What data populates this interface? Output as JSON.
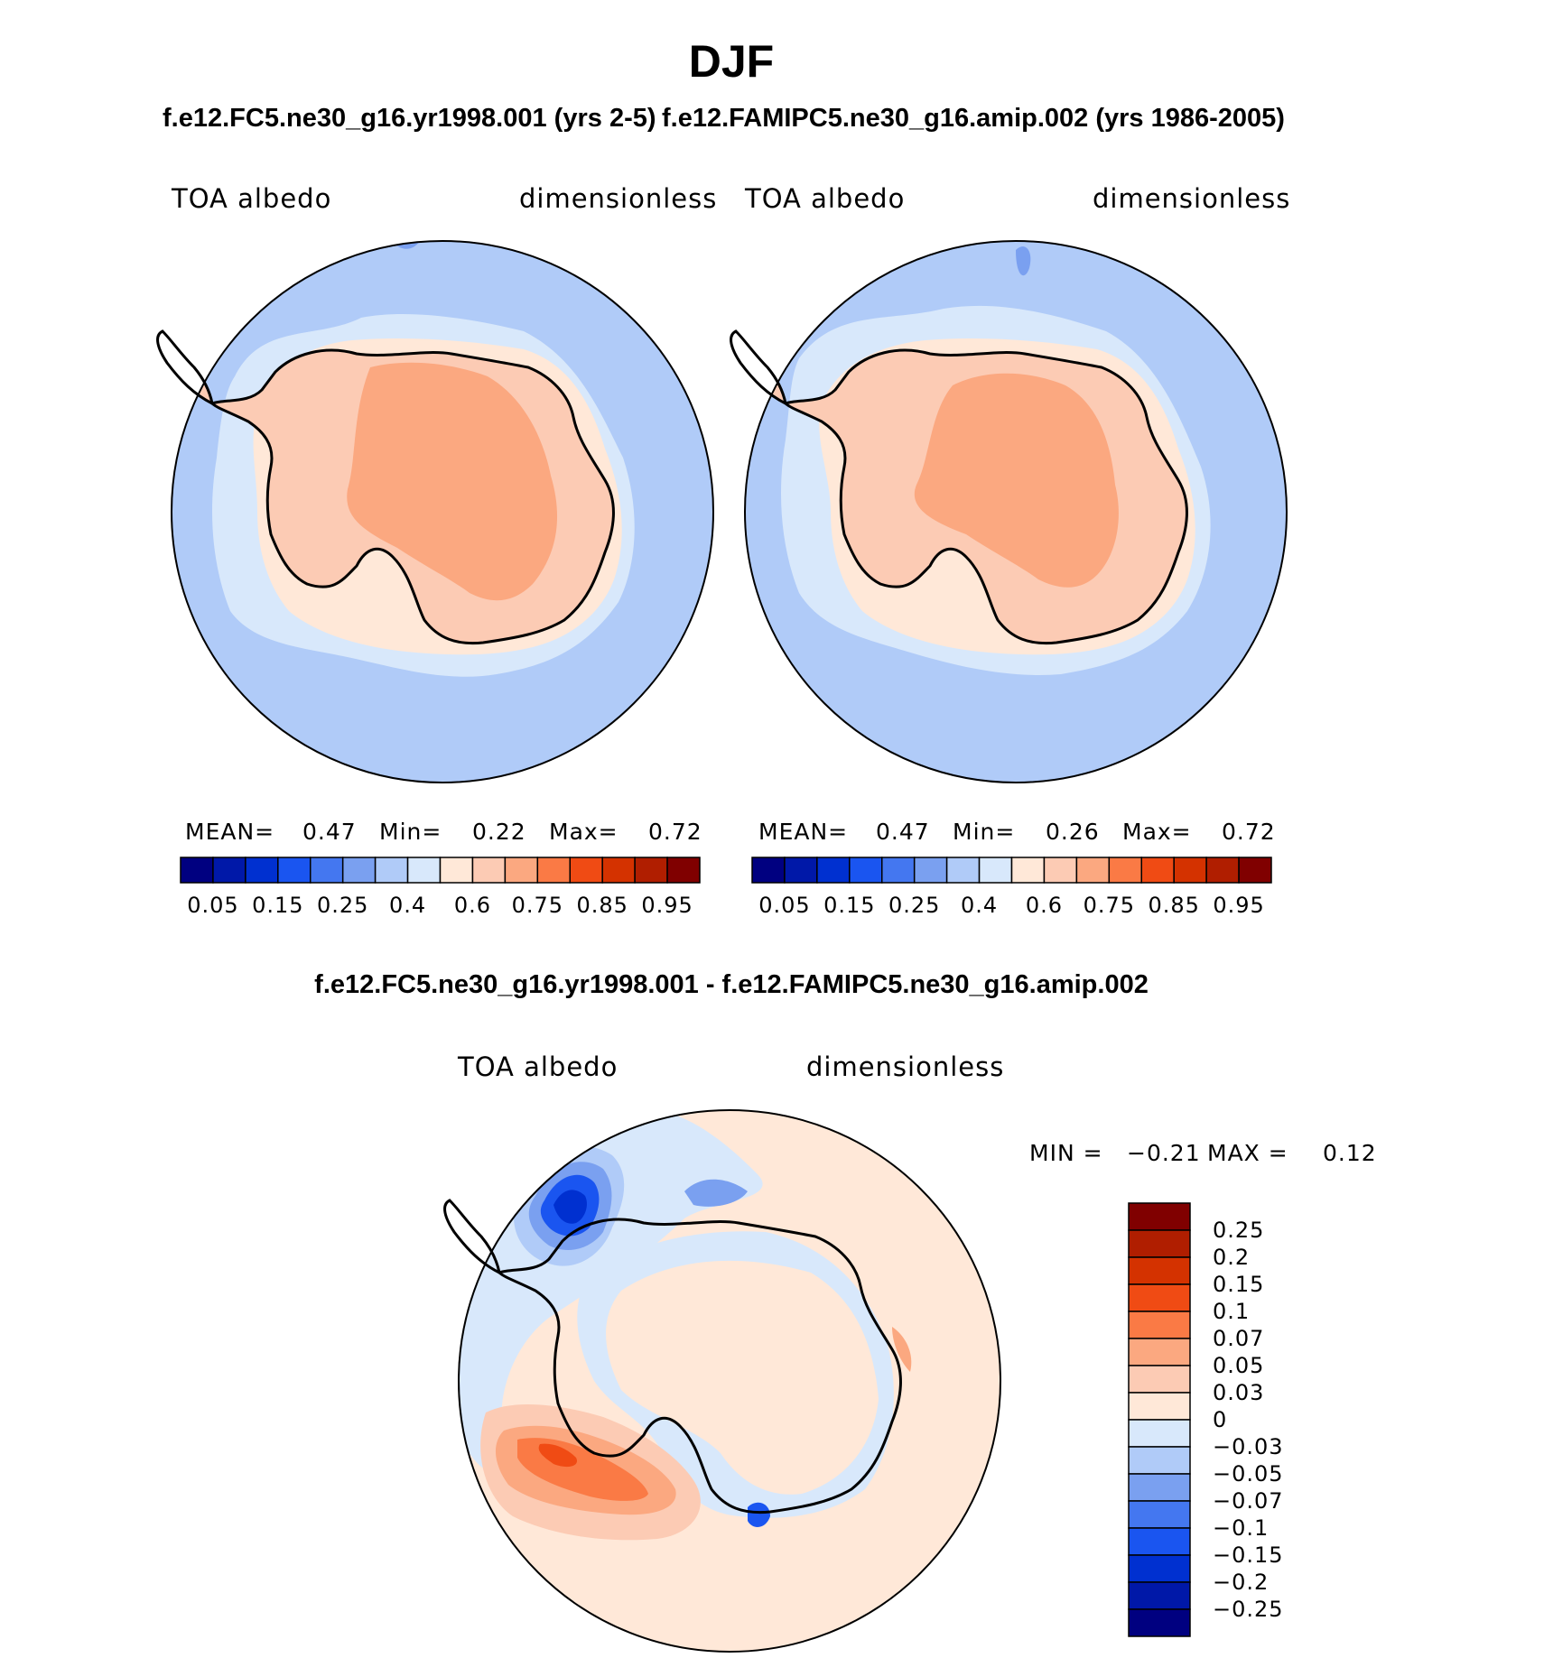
{
  "title": "DJF",
  "panels": [
    {
      "case_title": "f.e12.FC5.ne30_g16.yr1998.001 (yrs 2-5)",
      "variable": "TOA albedo",
      "units": "dimensionless",
      "stats": {
        "mean_label": "MEAN=",
        "mean": "0.47",
        "min_label": "Min=",
        "min": "0.22",
        "max_label": "Max=",
        "max": "0.72"
      }
    },
    {
      "case_title": "f.e12.FAMIPC5.ne30_g16.amip.002 (yrs 1986-2005)",
      "variable": "TOA albedo",
      "units": "dimensionless",
      "stats": {
        "mean_label": "MEAN=",
        "mean": "0.47",
        "min_label": "Min=",
        "min": "0.26",
        "max_label": "Max=",
        "max": "0.72"
      }
    },
    {
      "case_title": "f.e12.FC5.ne30_g16.yr1998.001 - f.e12.FAMIPC5.ne30_g16.amip.002",
      "variable": "TOA albedo",
      "units": "dimensionless",
      "stats": {
        "min_label": "MIN =",
        "min": "−0.21",
        "max_label": "MAX =",
        "max": "0.12"
      }
    }
  ],
  "colorbar_main": {
    "colors": [
      "#000080",
      "#0018a8",
      "#0030d0",
      "#1a55f0",
      "#4477f0",
      "#7aa0f0",
      "#b0cbf8",
      "#d8e8fb",
      "#ffe8d8",
      "#fccbb4",
      "#fba880",
      "#fa7a45",
      "#f04b14",
      "#d43200",
      "#b01e00",
      "#800000"
    ],
    "tick_labels": [
      "0.05",
      "0.15",
      "0.25",
      "0.4",
      "0.6",
      "0.75",
      "0.85",
      "0.95"
    ]
  },
  "colorbar_diff": {
    "colors": [
      "#800000",
      "#b01e00",
      "#d43200",
      "#f04b14",
      "#fa7a45",
      "#fba880",
      "#fccbb4",
      "#ffe8d8",
      "#d8e8fb",
      "#b0cbf8",
      "#7aa0f0",
      "#4477f0",
      "#1a55f0",
      "#0030d0",
      "#0018a8",
      "#000080"
    ],
    "tick_labels": [
      "0.25",
      "0.2",
      "0.15",
      "0.1",
      "0.07",
      "0.05",
      "0.03",
      "0",
      "−0.03",
      "−0.05",
      "−0.07",
      "−0.1",
      "−0.15",
      "−0.2",
      "−0.25"
    ]
  },
  "map_colors": {
    "ocean": "#b0cbf8",
    "ocean_light": "#d8e8fb",
    "ice_edge": "#ffe8d8",
    "land": "#fccbb4",
    "interior": "#fba880",
    "dark_blue_patch": "#7aa0f0",
    "diff_background": "#ffe8d8",
    "diff_blue": "#d8e8fb",
    "diff_blue2": "#b0cbf8",
    "diff_blue3": "#7aa0f0",
    "diff_blue4": "#1a55f0",
    "diff_blue5": "#0030d0",
    "diff_red": "#fccbb4",
    "diff_red2": "#fba880",
    "diff_red3": "#fa7a45",
    "diff_red4": "#f04b14"
  }
}
